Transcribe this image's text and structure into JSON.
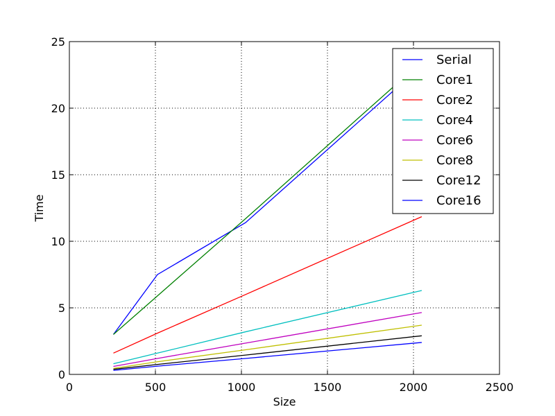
{
  "chart_data": {
    "type": "line",
    "title": "",
    "xlabel": "Size",
    "ylabel": "Time",
    "xlim": [
      0,
      2500
    ],
    "ylim": [
      0,
      25
    ],
    "xticks": [
      0,
      500,
      1000,
      1500,
      2000,
      2500
    ],
    "yticks": [
      0,
      5,
      10,
      15,
      20,
      25
    ],
    "xtick_labels": [
      "0",
      "500",
      "1000",
      "1500",
      "2000",
      "2500"
    ],
    "ytick_labels": [
      "0",
      "5",
      "10",
      "15",
      "20",
      "25"
    ],
    "grid": true,
    "legend_position": "top-right",
    "series": [
      {
        "name": "Serial",
        "color": "#0000ff",
        "x": [
          256,
          512,
          1024,
          2048
        ],
        "y": [
          3.0,
          7.5,
          11.4,
          23.2
        ]
      },
      {
        "name": "Core1",
        "color": "#008000",
        "x": [
          256,
          512,
          1024,
          2048
        ],
        "y": [
          3.0,
          5.9,
          11.7,
          23.5
        ]
      },
      {
        "name": "Core2",
        "color": "#ff0000",
        "x": [
          256,
          512,
          1024,
          2048
        ],
        "y": [
          1.6,
          3.1,
          6.0,
          11.85
        ]
      },
      {
        "name": "Core4",
        "color": "#00bfbf",
        "x": [
          256,
          512,
          1024,
          2048
        ],
        "y": [
          0.8,
          1.6,
          3.2,
          6.3
        ]
      },
      {
        "name": "Core6",
        "color": "#bf00bf",
        "x": [
          256,
          512,
          1024,
          2048
        ],
        "y": [
          0.6,
          1.2,
          2.35,
          4.65
        ]
      },
      {
        "name": "Core8",
        "color": "#bfbf00",
        "x": [
          256,
          512,
          1024,
          2048
        ],
        "y": [
          0.45,
          0.95,
          1.85,
          3.7
        ]
      },
      {
        "name": "Core12",
        "color": "#000000",
        "x": [
          256,
          512,
          1024,
          2048
        ],
        "y": [
          0.38,
          0.75,
          1.45,
          2.9
        ]
      },
      {
        "name": "Core16",
        "color": "#0000ff",
        "x": [
          256,
          512,
          1024,
          2048
        ],
        "y": [
          0.3,
          0.62,
          1.2,
          2.4
        ]
      }
    ]
  }
}
